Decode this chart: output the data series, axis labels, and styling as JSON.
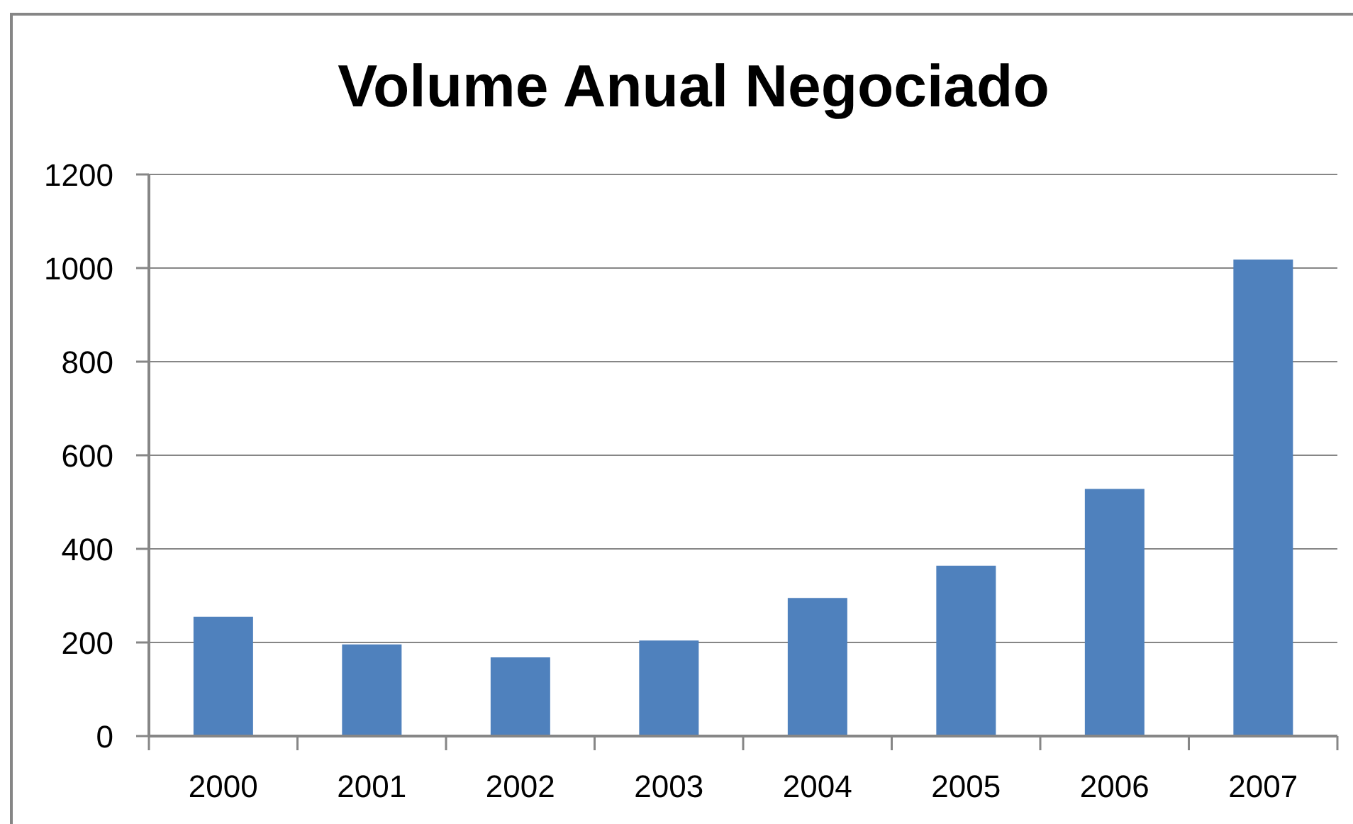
{
  "chart_data": {
    "type": "bar",
    "title": "Volume Anual Negociado",
    "categories": [
      "2000",
      "2001",
      "2002",
      "2003",
      "2004",
      "2005",
      "2006",
      "2007"
    ],
    "values": [
      255,
      196,
      168,
      204,
      295,
      364,
      528,
      1018
    ],
    "color": "#4f81bd",
    "ylim": [
      0,
      1200
    ],
    "yticks": [
      0,
      200,
      400,
      600,
      800,
      1000,
      1200
    ],
    "grid": "y"
  }
}
